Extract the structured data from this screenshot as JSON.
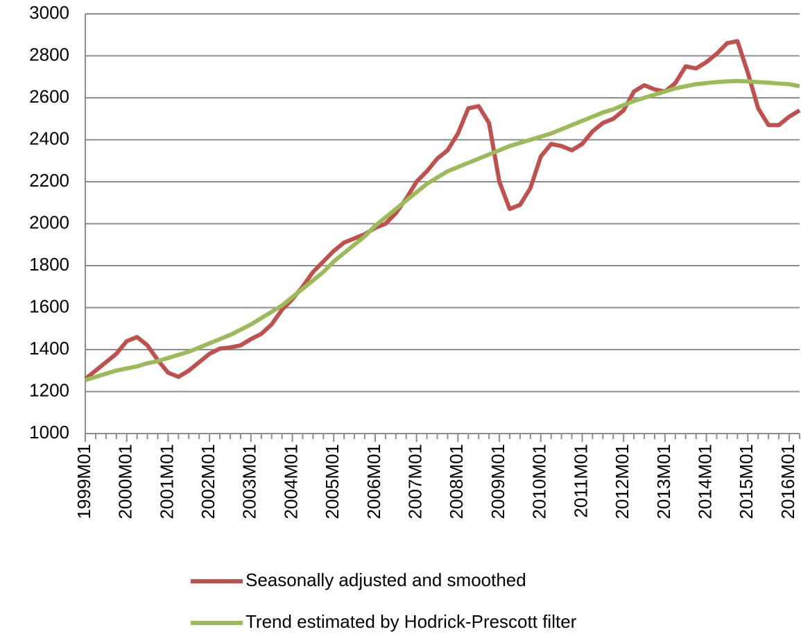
{
  "chart_data": {
    "type": "line",
    "categories": [
      "1999M01",
      null,
      null,
      null,
      "2000M01",
      null,
      null,
      null,
      "2001M01",
      null,
      null,
      null,
      "2002M01",
      null,
      null,
      null,
      "2003M01",
      null,
      null,
      null,
      "2004M01",
      null,
      null,
      null,
      "2005M01",
      null,
      null,
      null,
      "2006M01",
      null,
      null,
      null,
      "2007M01",
      null,
      null,
      null,
      "2008M01",
      null,
      null,
      null,
      "2009M01",
      null,
      null,
      null,
      "2010M01",
      null,
      null,
      null,
      "2011M01",
      null,
      null,
      null,
      "2012M01",
      null,
      null,
      null,
      "2013M01",
      null,
      null,
      null,
      "2014M01",
      null,
      null,
      null,
      "2015M01",
      null,
      null,
      null,
      "2016M01",
      null
    ],
    "series": [
      {
        "name": "Seasonally adjusted and smoothed",
        "color": "#c0504d",
        "values": [
          1260,
          1300,
          1340,
          1380,
          1440,
          1460,
          1420,
          1350,
          1290,
          1270,
          1300,
          1340,
          1380,
          1405,
          1410,
          1420,
          1450,
          1475,
          1520,
          1590,
          1640,
          1700,
          1770,
          1820,
          1870,
          1910,
          1930,
          1950,
          1980,
          2000,
          2050,
          2120,
          2200,
          2250,
          2310,
          2350,
          2430,
          2550,
          2560,
          2480,
          2200,
          2070,
          2090,
          2170,
          2320,
          2380,
          2370,
          2350,
          2380,
          2440,
          2480,
          2500,
          2540,
          2630,
          2660,
          2640,
          2630,
          2670,
          2750,
          2740,
          2770,
          2810,
          2860,
          2870,
          2720,
          2550,
          2470,
          2470,
          2510,
          2540
        ]
      },
      {
        "name": "Trend estimated by Hodrick-Prescott filter",
        "color": "#9bbb59",
        "values": [
          1255,
          1270,
          1285,
          1300,
          1310,
          1320,
          1335,
          1345,
          1360,
          1375,
          1390,
          1410,
          1430,
          1450,
          1470,
          1495,
          1520,
          1550,
          1580,
          1610,
          1650,
          1690,
          1730,
          1770,
          1820,
          1860,
          1900,
          1940,
          1990,
          2030,
          2070,
          2110,
          2150,
          2190,
          2220,
          2250,
          2270,
          2290,
          2310,
          2330,
          2350,
          2370,
          2385,
          2400,
          2415,
          2430,
          2450,
          2470,
          2490,
          2510,
          2530,
          2545,
          2565,
          2585,
          2600,
          2615,
          2630,
          2645,
          2655,
          2665,
          2670,
          2675,
          2678,
          2680,
          2678,
          2675,
          2672,
          2668,
          2665,
          2655
        ]
      }
    ],
    "ylim": [
      1000,
      3000
    ],
    "yticks": [
      1000,
      1200,
      1400,
      1600,
      1800,
      2000,
      2200,
      2400,
      2600,
      2800,
      3000
    ],
    "grid": true
  }
}
